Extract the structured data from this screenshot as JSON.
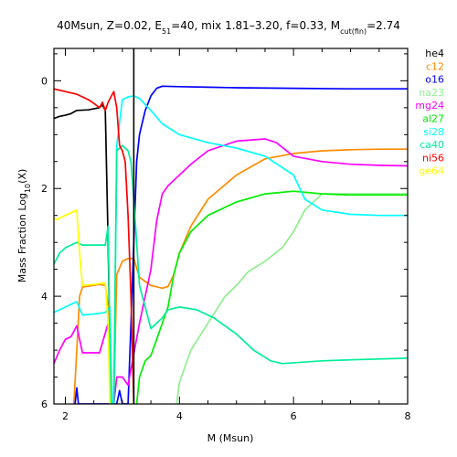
{
  "chart_data": {
    "type": "line",
    "title": "40Msun, Z=0.02, E",
    "title_parts": {
      "prefix": "40Msun, Z=0.02, E",
      "e_sub": "51",
      "middle": "=40, mix 1.81–3.20, f=0.33, M",
      "m_sub": "cut(fin)",
      "suffix": "=2.74"
    },
    "xlabel": "M (Msun)",
    "ylabel_parts": {
      "prefix": "Mass Fraction Log",
      "sub": "10",
      "suffix": "(X)"
    },
    "xlim": [
      1.8,
      8.0
    ],
    "ylim": [
      -6,
      0.6
    ],
    "xticks": [
      2,
      4,
      6,
      8
    ],
    "xtick_labels": [
      "2",
      "4",
      "6",
      "8"
    ],
    "yticks": [
      0,
      -2,
      -4,
      -6
    ],
    "ytick_labels": [
      "0",
      "2",
      "4",
      "6"
    ],
    "mcut_line_x": 3.2,
    "legend_placement": "right",
    "series": [
      {
        "name": "he4",
        "color": "#000000",
        "x": [
          1.8,
          1.9,
          2.0,
          2.1,
          2.2,
          2.4,
          2.6,
          2.65,
          2.7,
          2.75,
          2.8
        ],
        "y": [
          -0.7,
          -0.66,
          -0.64,
          -0.61,
          -0.55,
          -0.54,
          -0.5,
          -0.45,
          -0.55,
          -3.0,
          -6.0
        ]
      },
      {
        "name": "c12",
        "color": "#ff8c00",
        "x": [
          2.15,
          2.2,
          2.25,
          2.3,
          2.6,
          2.7,
          2.75,
          2.8,
          2.85,
          2.9,
          3.0,
          3.1,
          3.2,
          3.3,
          3.5,
          3.7,
          3.8,
          3.9,
          4.0,
          4.2,
          4.5,
          5.0,
          5.5,
          6.0,
          6.5,
          7.0,
          7.5,
          8.0
        ],
        "y": [
          -6.0,
          -5.0,
          -4.0,
          -3.83,
          -3.78,
          -3.8,
          -4.2,
          -6.0,
          -6.0,
          -3.6,
          -3.35,
          -3.3,
          -3.3,
          -3.65,
          -3.8,
          -3.85,
          -3.82,
          -3.6,
          -3.2,
          -2.7,
          -2.2,
          -1.75,
          -1.45,
          -1.35,
          -1.3,
          -1.28,
          -1.27,
          -1.27
        ]
      },
      {
        "name": "o16",
        "color": "#0000ff",
        "x": [
          2.17,
          2.2,
          2.23,
          2.9,
          2.95,
          3.0,
          3.05,
          3.1,
          3.15,
          3.25,
          3.3,
          3.4,
          3.5,
          3.6,
          3.7,
          4.0,
          4.5,
          5.0,
          6.0,
          7.0,
          8.0
        ],
        "y": [
          -6.0,
          -5.7,
          -6.0,
          -6.0,
          -5.75,
          -6.0,
          -6.0,
          -6.0,
          -4.5,
          -1.5,
          -1.0,
          -0.55,
          -0.28,
          -0.14,
          -0.1,
          -0.11,
          -0.12,
          -0.13,
          -0.14,
          -0.15,
          -0.15
        ]
      },
      {
        "name": "na23",
        "color": "#90ee90",
        "x": [
          3.95,
          4.0,
          4.2,
          4.5,
          4.8,
          5.0,
          5.2,
          5.5,
          5.8,
          6.0,
          6.2,
          6.5,
          7.0,
          7.5,
          8.0
        ],
        "y": [
          -6.0,
          -5.6,
          -5.0,
          -4.5,
          -4.0,
          -3.8,
          -3.55,
          -3.35,
          -3.1,
          -2.8,
          -2.4,
          -2.1,
          -2.1,
          -2.1,
          -2.1
        ]
      },
      {
        "name": "mg24",
        "color": "#ff00ff",
        "x": [
          1.8,
          1.9,
          2.0,
          2.1,
          2.2,
          2.3,
          2.6,
          2.75,
          2.8,
          2.85,
          2.9,
          3.0,
          3.1,
          3.3,
          3.5,
          3.6,
          3.7,
          3.8,
          4.0,
          4.2,
          4.5,
          5.0,
          5.5,
          5.7,
          6.0,
          6.5,
          7.0,
          7.5,
          8.0
        ],
        "y": [
          -5.25,
          -5.0,
          -4.8,
          -4.75,
          -4.55,
          -5.05,
          -5.05,
          -4.5,
          -6.0,
          -6.0,
          -5.5,
          -5.5,
          -5.65,
          -4.5,
          -3.5,
          -2.6,
          -2.1,
          -1.95,
          -1.75,
          -1.55,
          -1.3,
          -1.12,
          -1.08,
          -1.15,
          -1.4,
          -1.5,
          -1.55,
          -1.57,
          -1.58
        ]
      },
      {
        "name": "al27",
        "color": "#00ee00",
        "x": [
          3.25,
          3.3,
          3.4,
          3.5,
          3.6,
          3.7,
          3.8,
          3.85,
          3.9,
          4.0,
          4.2,
          4.5,
          5.0,
          5.5,
          6.0,
          6.5,
          7.0,
          7.5,
          8.0
        ],
        "y": [
          -6.0,
          -5.5,
          -5.2,
          -5.1,
          -4.8,
          -4.5,
          -4.2,
          -3.9,
          -3.6,
          -3.2,
          -2.8,
          -2.5,
          -2.25,
          -2.1,
          -2.05,
          -2.1,
          -2.12,
          -2.12,
          -2.12
        ]
      },
      {
        "name": "si28",
        "color": "#00ffff",
        "x": [
          1.8,
          2.0,
          2.2,
          2.3,
          2.5,
          2.7,
          2.78,
          2.82,
          2.85,
          2.9,
          3.0,
          3.1,
          3.2,
          3.3,
          3.5,
          3.7,
          4.0,
          4.5,
          5.0,
          5.5,
          6.0,
          6.2,
          6.5,
          7.0,
          7.5,
          8.0
        ],
        "y": [
          -4.3,
          -4.2,
          -4.1,
          -4.35,
          -4.33,
          -4.3,
          -4.2,
          -6.0,
          -6.0,
          -1.2,
          -0.35,
          -0.3,
          -0.28,
          -0.33,
          -0.55,
          -0.8,
          -1.0,
          -1.15,
          -1.25,
          -1.4,
          -1.75,
          -2.2,
          -2.4,
          -2.48,
          -2.5,
          -2.5
        ]
      },
      {
        "name": "ca40",
        "color": "#00ee99",
        "x": [
          1.8,
          1.9,
          2.0,
          2.1,
          2.2,
          2.3,
          2.6,
          2.7,
          2.75,
          2.8,
          2.85,
          2.9,
          3.0,
          3.1,
          3.15,
          3.2,
          3.3,
          3.5,
          3.7,
          3.8,
          4.0,
          4.3,
          4.6,
          5.0,
          5.3,
          5.6,
          5.8,
          6.5,
          7.0,
          8.0
        ],
        "y": [
          -3.4,
          -3.2,
          -3.1,
          -3.05,
          -3.0,
          -3.05,
          -3.05,
          -3.05,
          -2.7,
          -6.0,
          -6.0,
          -1.3,
          -1.2,
          -1.3,
          -1.5,
          -2.2,
          -3.8,
          -4.6,
          -4.4,
          -4.25,
          -4.2,
          -4.25,
          -4.4,
          -4.7,
          -5.0,
          -5.2,
          -5.25,
          -5.2,
          -5.18,
          -5.15
        ]
      },
      {
        "name": "ni56",
        "color": "#ff0000",
        "x": [
          1.8,
          2.0,
          2.2,
          2.3,
          2.4,
          2.5,
          2.6,
          2.65,
          2.7,
          2.75,
          2.8,
          2.85,
          2.9,
          2.95,
          3.0,
          3.05,
          3.1,
          3.15,
          3.2
        ],
        "y": [
          -0.15,
          -0.2,
          -0.25,
          -0.3,
          -0.35,
          -0.42,
          -0.5,
          -0.4,
          -0.55,
          -0.4,
          -0.3,
          -0.2,
          -0.5,
          -1.2,
          -1.3,
          -1.5,
          -2.5,
          -4.0,
          -6.0
        ]
      },
      {
        "name": "ge64",
        "color": "#ffff00",
        "x": [
          1.8,
          1.85,
          1.9,
          2.0,
          2.1,
          2.2,
          2.25,
          2.3,
          2.5,
          2.7,
          2.75,
          2.78
        ],
        "y": [
          -2.55,
          -2.58,
          -2.55,
          -2.5,
          -2.45,
          -2.4,
          -3.2,
          -3.8,
          -3.78,
          -3.75,
          -4.5,
          -6.0
        ]
      }
    ]
  }
}
